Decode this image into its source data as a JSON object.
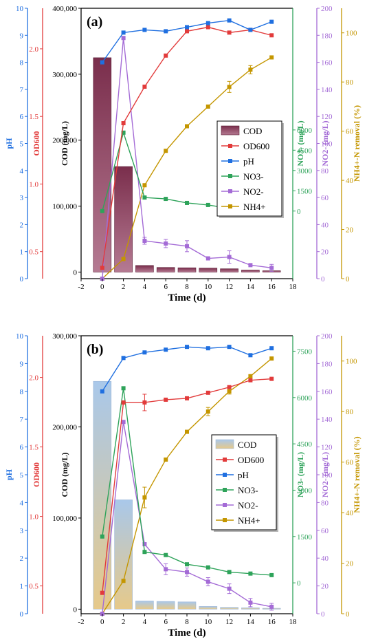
{
  "colors": {
    "pH": "#1f6fe0",
    "OD": "#e23b3b",
    "NO3": "#2ea35a",
    "NO2": "#a46bd6",
    "NH4": "#c49600",
    "COD_a": "#8e3d5d",
    "COD_b_top": "#a9c8ea",
    "COD_b_bottom": "#e6c98a",
    "axis_black": "#000000"
  },
  "xlabel": "Time (d)",
  "x_ticks": [
    "-2",
    "0",
    "2",
    "4",
    "6",
    "8",
    "10",
    "12",
    "14",
    "16",
    "18"
  ],
  "axes_labels": {
    "pH": "pH",
    "OD": "OD600",
    "COD": "COD (mg/L)",
    "NO3": "NO3- (mg/L)",
    "NO2": "NO2- (mg/L)",
    "NH4": "NH4+-N removal (%)"
  },
  "chart_data": [
    {
      "type": "bar+line",
      "panel": "(a)",
      "x": [
        0,
        2,
        4,
        6,
        8,
        10,
        12,
        14,
        16
      ],
      "legend": [
        "COD",
        "OD600",
        "pH",
        "NO3-",
        "NO2-",
        "NH4+"
      ],
      "axes": {
        "pH": {
          "range": [
            0,
            10
          ],
          "ticks": [
            0,
            1,
            2,
            3,
            4,
            5,
            6,
            7,
            8,
            9,
            10
          ]
        },
        "OD": {
          "range": [
            0.3,
            2.3
          ],
          "ticks": [
            0.5,
            1.0,
            1.5,
            2.0
          ]
        },
        "COD": {
          "range": [
            -10000,
            400000
          ],
          "ticks": [
            "0",
            "100,000",
            "200,000",
            "300,000",
            "400,000"
          ]
        },
        "NO3": {
          "range": [
            -5000,
            15000
          ],
          "ticks": [
            0,
            1500,
            3000,
            4500,
            6000
          ]
        },
        "NO2": {
          "range": [
            0,
            200
          ],
          "ticks": [
            0,
            20,
            40,
            60,
            80,
            100,
            120,
            140,
            160,
            180,
            200
          ]
        },
        "NH4": {
          "range": [
            0,
            110
          ],
          "ticks": [
            0,
            20,
            40,
            60,
            80,
            100
          ]
        }
      },
      "series": {
        "COD": [
          325000,
          160000,
          10000,
          7000,
          6500,
          6000,
          5000,
          3000,
          2000
        ],
        "pH": [
          8.0,
          9.1,
          9.2,
          9.15,
          9.3,
          9.45,
          9.55,
          9.2,
          9.5
        ],
        "OD": [
          0.38,
          1.45,
          1.72,
          1.95,
          2.13,
          2.16,
          2.12,
          2.14,
          2.1
        ],
        "NO3": [
          0,
          5800,
          1000,
          900,
          600,
          450,
          200,
          100,
          50
        ],
        "NO2": [
          0,
          178,
          28,
          26,
          24,
          15,
          16,
          10,
          8
        ],
        "NH4": [
          0,
          8,
          38,
          52,
          62,
          70,
          78,
          85,
          90
        ]
      }
    },
    {
      "type": "bar+line",
      "panel": "(b)",
      "x": [
        0,
        2,
        4,
        6,
        8,
        10,
        12,
        14,
        16
      ],
      "legend": [
        "COD",
        "OD600",
        "pH",
        "NO3-",
        "NO2-",
        "NH4+"
      ],
      "axes": {
        "pH": {
          "range": [
            0,
            10
          ],
          "ticks": [
            0,
            1,
            2,
            3,
            4,
            5,
            6,
            7,
            8,
            9,
            10
          ]
        },
        "OD": {
          "range": [
            0.3,
            2.3
          ],
          "ticks": [
            0.5,
            1.0,
            1.5,
            2.0
          ]
        },
        "COD": {
          "range": [
            -5000,
            300000
          ],
          "ticks": [
            "0",
            "100,000",
            "200,000",
            "300,000"
          ]
        },
        "NO3": {
          "range": [
            -1000,
            8000
          ],
          "ticks": [
            0,
            1500,
            3000,
            4500,
            6000,
            7500
          ]
        },
        "NO2": {
          "range": [
            0,
            200
          ],
          "ticks": [
            0,
            20,
            40,
            60,
            80,
            100,
            120,
            140,
            160,
            180,
            200
          ]
        },
        "NH4": {
          "range": [
            0,
            110
          ],
          "ticks": [
            0,
            20,
            40,
            60,
            80,
            100
          ]
        }
      },
      "series": {
        "COD": [
          250000,
          120000,
          9000,
          8500,
          8000,
          3000,
          2000,
          1500,
          1000
        ],
        "pH": [
          8.0,
          9.2,
          9.4,
          9.5,
          9.6,
          9.55,
          9.6,
          9.3,
          9.55
        ],
        "OD": [
          0.45,
          1.82,
          1.82,
          1.84,
          1.85,
          1.89,
          1.93,
          1.98,
          1.99
        ],
        "NO3": [
          1500,
          6300,
          1000,
          900,
          600,
          500,
          350,
          300,
          250
        ],
        "NO2": [
          0,
          138,
          50,
          32,
          30,
          23,
          18,
          8,
          5
        ],
        "NH4": [
          0,
          13,
          46,
          61,
          72,
          80,
          88,
          94,
          101
        ]
      }
    }
  ]
}
